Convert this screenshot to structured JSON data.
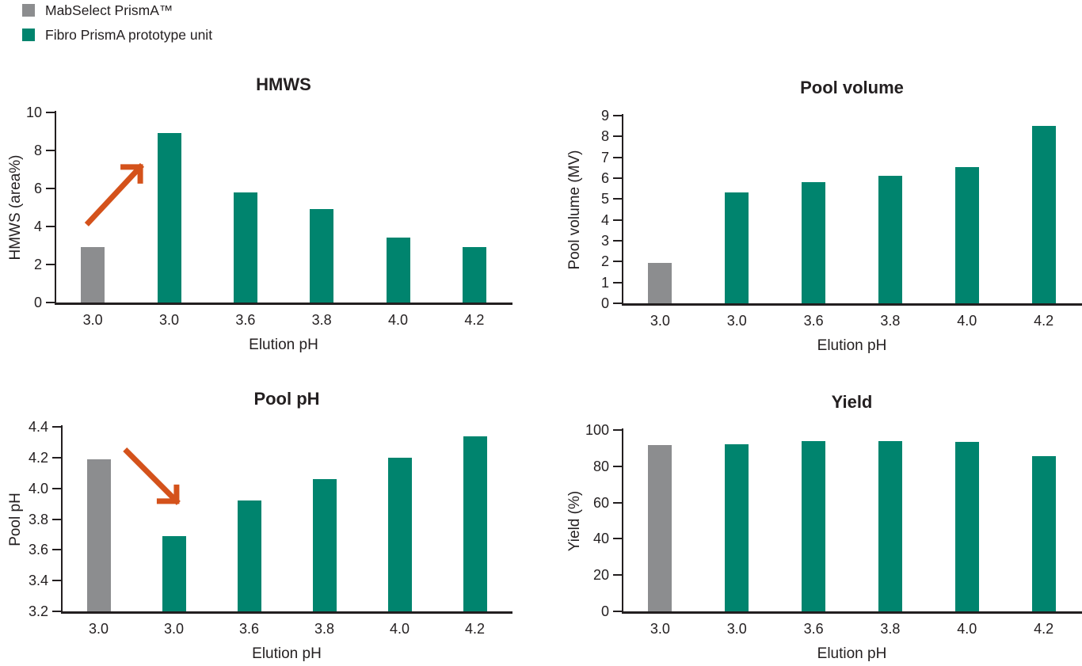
{
  "legend": {
    "items": [
      {
        "label": "MabSelect PrismA™",
        "series": "mabselect"
      },
      {
        "label": "Fibro PrismA prototype unit",
        "series": "fibro"
      }
    ]
  },
  "colors": {
    "mabselect": "#8C8D8F",
    "fibro": "#00846E",
    "arrow": "#D4521B",
    "axis": "#231F20",
    "text": "#231F20"
  },
  "chart_data": [
    {
      "type": "bar",
      "title": "HMWS",
      "xlabel": "Elution pH",
      "ylabel": "HMWS (area%)",
      "categories": [
        "3.0",
        "3.0",
        "3.6",
        "3.8",
        "4.0",
        "4.2"
      ],
      "values": [
        2.9,
        8.9,
        5.8,
        4.9,
        3.4,
        2.9
      ],
      "series_per_bar": [
        "mabselect",
        "fibro",
        "fibro",
        "fibro",
        "fibro",
        "fibro"
      ],
      "ylim": [
        0,
        10
      ],
      "yticks": [
        "0",
        "2",
        "4",
        "6",
        "8",
        "10"
      ],
      "grid": false,
      "annotation": {
        "type": "arrow",
        "direction": "up-right",
        "x1": 0.074,
        "y1": 0.579,
        "x2": 0.187,
        "y2": 0.287
      }
    },
    {
      "type": "bar",
      "title": "Pool volume",
      "xlabel": "Elution pH",
      "ylabel": "Pool volume (MV)",
      "categories": [
        "3.0",
        "3.0",
        "3.6",
        "3.8",
        "4.0",
        "4.2"
      ],
      "values": [
        1.95,
        5.3,
        5.8,
        6.1,
        6.55,
        8.5
      ],
      "series_per_bar": [
        "mabselect",
        "fibro",
        "fibro",
        "fibro",
        "fibro",
        "fibro"
      ],
      "ylim": [
        0,
        9
      ],
      "yticks": [
        "0",
        "1",
        "2",
        "3",
        "4",
        "5",
        "6",
        "7",
        "8",
        "9"
      ],
      "grid": false,
      "annotation": null
    },
    {
      "type": "bar",
      "title": "Pool pH",
      "xlabel": "Elution pH",
      "ylabel": "Pool pH",
      "categories": [
        "3.0",
        "3.0",
        "3.6",
        "3.8",
        "4.0",
        "4.2"
      ],
      "values": [
        4.19,
        3.69,
        3.92,
        4.06,
        4.2,
        4.34
      ],
      "series_per_bar": [
        "mabselect",
        "fibro",
        "fibro",
        "fibro",
        "fibro",
        "fibro"
      ],
      "ylim": [
        3.2,
        4.4
      ],
      "yticks": [
        "3.2",
        "3.4",
        "3.6",
        "3.8",
        "4.0",
        "4.2",
        "4.4"
      ],
      "grid": false,
      "annotation": {
        "type": "arrow",
        "direction": "down-right",
        "x1": 0.146,
        "y1": 0.133,
        "x2": 0.256,
        "y2": 0.403
      }
    },
    {
      "type": "bar",
      "title": "Yield",
      "xlabel": "Elution pH",
      "ylabel": "Yield (%)",
      "categories": [
        "3.0",
        "3.0",
        "3.6",
        "3.8",
        "4.0",
        "4.2"
      ],
      "values": [
        91.5,
        92,
        94,
        94,
        93.5,
        85.5
      ],
      "series_per_bar": [
        "mabselect",
        "fibro",
        "fibro",
        "fibro",
        "fibro",
        "fibro"
      ],
      "ylim": [
        0,
        100
      ],
      "yticks": [
        "0",
        "20",
        "40",
        "60",
        "80",
        "100"
      ],
      "grid": false,
      "annotation": null
    }
  ]
}
